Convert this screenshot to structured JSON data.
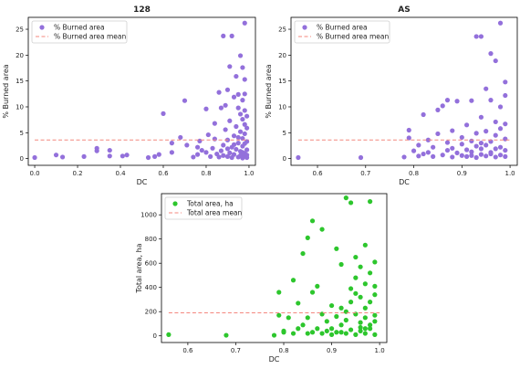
{
  "chart_data": [
    {
      "type": "scatter",
      "title": "128",
      "xlabel": "DC",
      "ylabel": "% Burned area",
      "xlim": [
        -0.03,
        1.03
      ],
      "ylim": [
        -1.3,
        27.3
      ],
      "xticks": [
        0.0,
        0.2,
        0.4,
        0.6,
        0.8,
        1.0
      ],
      "xtick_labels": [
        "0.0",
        "0.2",
        "0.4",
        "0.6",
        "0.8",
        "1.0"
      ],
      "yticks": [
        0,
        5,
        10,
        15,
        20,
        25
      ],
      "ytick_labels": [
        "0",
        "5",
        "10",
        "15",
        "20",
        "25"
      ],
      "grid": false,
      "legend_position": "top-left",
      "series": [
        {
          "name": "% Burned area",
          "kind": "points",
          "color": "#9370DB",
          "points": [
            [
              0.0,
              0.2
            ],
            [
              0.1,
              0.7
            ],
            [
              0.13,
              0.3
            ],
            [
              0.23,
              0.4
            ],
            [
              0.29,
              1.5
            ],
            [
              0.29,
              2.0
            ],
            [
              0.35,
              0.5
            ],
            [
              0.35,
              1.6
            ],
            [
              0.41,
              0.5
            ],
            [
              0.43,
              0.7
            ],
            [
              0.53,
              0.2
            ],
            [
              0.56,
              0.4
            ],
            [
              0.58,
              0.8
            ],
            [
              0.6,
              8.7
            ],
            [
              0.64,
              1.2
            ],
            [
              0.64,
              3.0
            ],
            [
              0.68,
              4.1
            ],
            [
              0.7,
              11.2
            ],
            [
              0.71,
              2.6
            ],
            [
              0.74,
              0.3
            ],
            [
              0.76,
              0.8
            ],
            [
              0.76,
              2.2
            ],
            [
              0.77,
              3.4
            ],
            [
              0.78,
              1.6
            ],
            [
              0.8,
              1.2
            ],
            [
              0.8,
              9.6
            ],
            [
              0.81,
              4.6
            ],
            [
              0.82,
              0.4
            ],
            [
              0.83,
              2.0
            ],
            [
              0.84,
              3.8
            ],
            [
              0.84,
              6.8
            ],
            [
              0.85,
              0.9
            ],
            [
              0.86,
              0.3
            ],
            [
              0.86,
              12.8
            ],
            [
              0.87,
              1.5
            ],
            [
              0.87,
              9.8
            ],
            [
              0.88,
              23.7
            ],
            [
              0.88,
              2.6
            ],
            [
              0.88,
              0.6
            ],
            [
              0.89,
              5.6
            ],
            [
              0.89,
              10.3
            ],
            [
              0.9,
              0.4
            ],
            [
              0.9,
              3.6
            ],
            [
              0.9,
              13.3
            ],
            [
              0.91,
              1.1
            ],
            [
              0.91,
              17.8
            ],
            [
              0.91,
              7.3
            ],
            [
              0.92,
              0.2
            ],
            [
              0.92,
              2.2
            ],
            [
              0.92,
              23.7
            ],
            [
              0.93,
              4.4
            ],
            [
              0.93,
              11.9
            ],
            [
              0.93,
              0.8
            ],
            [
              0.94,
              1.8
            ],
            [
              0.94,
              6.2
            ],
            [
              0.94,
              15.9
            ],
            [
              0.95,
              0.3
            ],
            [
              0.95,
              3.0
            ],
            [
              0.95,
              9.8
            ],
            [
              0.95,
              12.4
            ],
            [
              0.96,
              0.6
            ],
            [
              0.96,
              1.4
            ],
            [
              0.96,
              5.2
            ],
            [
              0.96,
              8.6
            ],
            [
              0.96,
              19.9
            ],
            [
              0.97,
              0.1
            ],
            [
              0.97,
              2.4
            ],
            [
              0.97,
              3.9
            ],
            [
              0.97,
              7.6
            ],
            [
              0.97,
              11.3
            ],
            [
              0.97,
              17.6
            ],
            [
              0.98,
              0.5
            ],
            [
              0.98,
              1.0
            ],
            [
              0.98,
              2.9
            ],
            [
              0.98,
              4.8
            ],
            [
              0.98,
              6.6
            ],
            [
              0.98,
              9.3
            ],
            [
              0.98,
              12.5
            ],
            [
              0.98,
              26.2
            ],
            [
              0.98,
              15.3
            ],
            [
              0.99,
              0.2
            ],
            [
              0.99,
              1.7
            ],
            [
              0.99,
              3.3
            ],
            [
              0.99,
              5.9
            ],
            [
              0.99,
              8.2
            ],
            [
              0.99,
              0.7
            ],
            [
              0.93,
              2.7
            ],
            [
              0.9,
              1.9
            ],
            [
              0.95,
              4.1
            ],
            [
              0.97,
              1.2
            ]
          ]
        },
        {
          "name": "% Burned area mean",
          "kind": "hline",
          "color": "#F4877E",
          "y": 3.6,
          "x_range": [
            0.0,
            1.0
          ]
        }
      ]
    },
    {
      "type": "scatter",
      "title": "AS",
      "xlabel": "DC",
      "ylabel": "% Burned area",
      "xlim": [
        0.545,
        1.015
      ],
      "ylim": [
        -1.3,
        27.3
      ],
      "xticks": [
        0.6,
        0.7,
        0.8,
        0.9,
        1.0
      ],
      "xtick_labels": [
        "0.6",
        "0.7",
        "0.8",
        "0.9",
        "1.0"
      ],
      "yticks": [
        0,
        5,
        10,
        15,
        20,
        25
      ],
      "ytick_labels": [
        "0",
        "5",
        "10",
        "15",
        "20",
        "25"
      ],
      "grid": false,
      "legend_position": "top-left",
      "series": [
        {
          "name": "% Burned area",
          "kind": "points",
          "color": "#9370DB",
          "points": [
            [
              0.56,
              0.2
            ],
            [
              0.69,
              0.2
            ],
            [
              0.78,
              0.3
            ],
            [
              0.79,
              4.0
            ],
            [
              0.79,
              5.5
            ],
            [
              0.8,
              1.5
            ],
            [
              0.81,
              0.5
            ],
            [
              0.81,
              2.6
            ],
            [
              0.82,
              0.9
            ],
            [
              0.82,
              8.5
            ],
            [
              0.83,
              1.2
            ],
            [
              0.83,
              3.6
            ],
            [
              0.84,
              0.4
            ],
            [
              0.84,
              2.2
            ],
            [
              0.85,
              4.8
            ],
            [
              0.85,
              9.4
            ],
            [
              0.86,
              0.7
            ],
            [
              0.86,
              10.2
            ],
            [
              0.87,
              1.6
            ],
            [
              0.87,
              3.1
            ],
            [
              0.87,
              11.3
            ],
            [
              0.88,
              0.3
            ],
            [
              0.88,
              2.0
            ],
            [
              0.88,
              5.4
            ],
            [
              0.89,
              1.1
            ],
            [
              0.89,
              11.1
            ],
            [
              0.9,
              0.6
            ],
            [
              0.9,
              2.8
            ],
            [
              0.9,
              4.1
            ],
            [
              0.91,
              0.4
            ],
            [
              0.91,
              1.7
            ],
            [
              0.91,
              6.5
            ],
            [
              0.92,
              1.3
            ],
            [
              0.92,
              3.4
            ],
            [
              0.92,
              11.2
            ],
            [
              0.93,
              0.2
            ],
            [
              0.93,
              2.4
            ],
            [
              0.93,
              4.9
            ],
            [
              0.93,
              23.6
            ],
            [
              0.94,
              0.8
            ],
            [
              0.94,
              1.9
            ],
            [
              0.94,
              23.6
            ],
            [
              0.94,
              8.0
            ],
            [
              0.95,
              0.5
            ],
            [
              0.95,
              2.6
            ],
            [
              0.95,
              5.3
            ],
            [
              0.95,
              13.5
            ],
            [
              0.96,
              1.2
            ],
            [
              0.96,
              3.3
            ],
            [
              0.96,
              11.3
            ],
            [
              0.96,
              20.3
            ],
            [
              0.97,
              0.3
            ],
            [
              0.97,
              1.9
            ],
            [
              0.97,
              4.5
            ],
            [
              0.97,
              7.1
            ],
            [
              0.97,
              18.9
            ],
            [
              0.98,
              0.7
            ],
            [
              0.98,
              2.2
            ],
            [
              0.98,
              5.8
            ],
            [
              0.98,
              26.2
            ],
            [
              0.98,
              10.0
            ],
            [
              0.99,
              0.4
            ],
            [
              0.99,
              1.6
            ],
            [
              0.99,
              3.8
            ],
            [
              0.99,
              6.7
            ],
            [
              0.99,
              14.8
            ],
            [
              0.99,
              12.2
            ],
            [
              0.96,
              0.9
            ],
            [
              0.92,
              0.6
            ],
            [
              0.94,
              3.0
            ]
          ]
        },
        {
          "name": "% Burned area mean",
          "kind": "hline",
          "color": "#F4877E",
          "y": 3.6,
          "x_range": [
            0.56,
            1.0
          ]
        }
      ]
    },
    {
      "type": "scatter",
      "title": "",
      "xlabel": "DC",
      "ylabel": "Total area, ha",
      "xlim": [
        0.545,
        1.015
      ],
      "ylim": [
        -55,
        1175
      ],
      "xticks": [
        0.6,
        0.7,
        0.8,
        0.9,
        1.0
      ],
      "xtick_labels": [
        "0.6",
        "0.7",
        "0.8",
        "0.9",
        "1.0"
      ],
      "yticks": [
        0,
        200,
        400,
        600,
        800,
        1000
      ],
      "ytick_labels": [
        "0",
        "200",
        "400",
        "600",
        "800",
        "1000"
      ],
      "grid": false,
      "legend_position": "top-left",
      "series": [
        {
          "name": "Total area, ha",
          "kind": "points",
          "color": "#2DC62D",
          "points": [
            [
              0.56,
              10
            ],
            [
              0.68,
              5
            ],
            [
              0.78,
              5
            ],
            [
              0.79,
              170
            ],
            [
              0.79,
              360
            ],
            [
              0.8,
              30
            ],
            [
              0.8,
              40
            ],
            [
              0.81,
              150
            ],
            [
              0.82,
              460
            ],
            [
              0.82,
              20
            ],
            [
              0.83,
              60
            ],
            [
              0.83,
              270
            ],
            [
              0.84,
              90
            ],
            [
              0.84,
              680
            ],
            [
              0.85,
              20
            ],
            [
              0.85,
              810
            ],
            [
              0.85,
              150
            ],
            [
              0.86,
              30
            ],
            [
              0.86,
              360
            ],
            [
              0.86,
              950
            ],
            [
              0.87,
              60
            ],
            [
              0.87,
              410
            ],
            [
              0.88,
              20
            ],
            [
              0.88,
              180
            ],
            [
              0.88,
              880
            ],
            [
              0.89,
              40
            ],
            [
              0.89,
              120
            ],
            [
              0.9,
              10
            ],
            [
              0.9,
              250
            ],
            [
              0.9,
              60
            ],
            [
              0.91,
              30
            ],
            [
              0.91,
              160
            ],
            [
              0.91,
              720
            ],
            [
              0.92,
              90
            ],
            [
              0.92,
              230
            ],
            [
              0.92,
              590
            ],
            [
              0.93,
              20
            ],
            [
              0.93,
              130
            ],
            [
              0.93,
              1140
            ],
            [
              0.94,
              50
            ],
            [
              0.94,
              280
            ],
            [
              0.94,
              1100
            ],
            [
              0.94,
              390
            ],
            [
              0.95,
              10
            ],
            [
              0.95,
              180
            ],
            [
              0.95,
              480
            ],
            [
              0.95,
              650
            ],
            [
              0.96,
              40
            ],
            [
              0.96,
              110
            ],
            [
              0.96,
              320
            ],
            [
              0.96,
              570
            ],
            [
              0.97,
              20
            ],
            [
              0.97,
              150
            ],
            [
              0.97,
              430
            ],
            [
              0.97,
              750
            ],
            [
              0.97,
              230
            ],
            [
              0.98,
              60
            ],
            [
              0.98,
              280
            ],
            [
              0.98,
              520
            ],
            [
              0.98,
              1110
            ],
            [
              0.98,
              90
            ],
            [
              0.99,
              10
            ],
            [
              0.99,
              170
            ],
            [
              0.99,
              340
            ],
            [
              0.99,
              610
            ],
            [
              0.99,
              410
            ],
            [
              0.99,
              120
            ],
            [
              0.96,
              70
            ],
            [
              0.93,
              200
            ],
            [
              0.95,
              350
            ],
            [
              0.97,
              60
            ],
            [
              0.92,
              30
            ]
          ]
        },
        {
          "name": "Total area mean",
          "kind": "hline",
          "color": "#F4877E",
          "y": 190,
          "x_range": [
            0.56,
            1.0
          ]
        }
      ]
    }
  ]
}
